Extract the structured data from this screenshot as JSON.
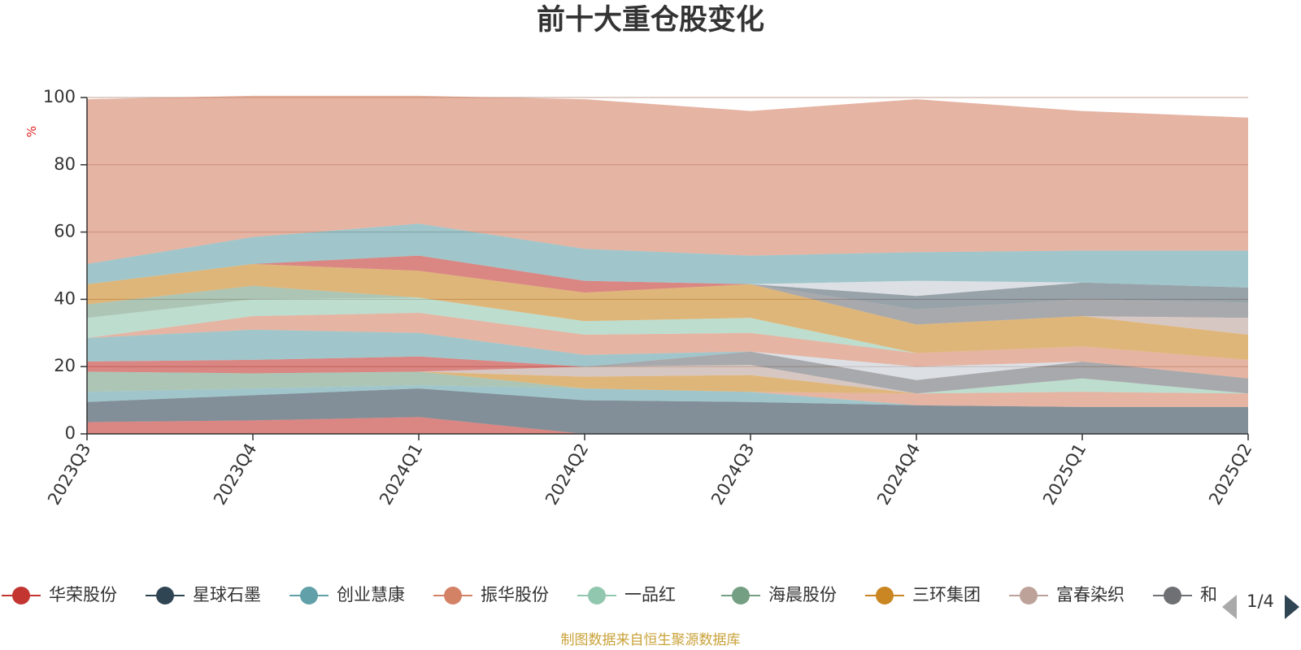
{
  "page": {
    "source_note": "制图数据来自恒生聚源数据库"
  },
  "legend": {
    "page_indicator": "1/4"
  },
  "chart_data": {
    "type": "area",
    "stacked": true,
    "title": "前十大重仓股变化",
    "ylabel": "%",
    "ylim": [
      0,
      100
    ],
    "yticks": [
      0,
      20,
      40,
      60,
      80,
      100
    ],
    "categories": [
      "2023Q3",
      "2023Q4",
      "2024Q1",
      "2024Q2",
      "2024Q3",
      "2024Q4",
      "2025Q1",
      "2025Q2"
    ],
    "grid": true,
    "legend_position": "bottom",
    "series": [
      {
        "name": "华荣股份",
        "color": "#c23531",
        "values": [
          3.5,
          4,
          5,
          0,
          0,
          0,
          0,
          0
        ]
      },
      {
        "name": "星球石墨",
        "color": "#2f4554",
        "values": [
          6,
          7.5,
          8.5,
          10,
          9.5,
          8.5,
          8,
          8
        ]
      },
      {
        "name": "创业慧康",
        "color": "#61a0a8",
        "values": [
          3,
          2,
          1,
          3.5,
          3,
          0,
          0,
          0
        ]
      },
      {
        "name": "振华股份",
        "color": "#d48265",
        "values": [
          0,
          0,
          0,
          0,
          0,
          3.5,
          4.5,
          4
        ]
      },
      {
        "name": "一品红",
        "color": "#91c7ae",
        "values": [
          0,
          0,
          0,
          0,
          0,
          0,
          4,
          0
        ]
      },
      {
        "name": "海晨股份",
        "color": "#749f83",
        "values": [
          6,
          4.5,
          4,
          0,
          0,
          0,
          0,
          0
        ]
      },
      {
        "name": "三环集团",
        "color": "#ca8622",
        "values": [
          0,
          0,
          0,
          3.5,
          5,
          0,
          0,
          0
        ]
      },
      {
        "name": "富春染织",
        "color": "#bda29a",
        "values": [
          0,
          0,
          0,
          3,
          3,
          0,
          0,
          0
        ]
      },
      {
        "name": "和",
        "color": "#6e7074",
        "values": [
          0,
          0,
          0,
          0,
          4,
          4,
          5,
          4.5
        ]
      },
      {
        "name": "",
        "color": "#c4ccd3",
        "values": [
          0,
          0,
          0,
          0,
          0,
          4,
          0,
          0
        ]
      },
      {
        "name": "",
        "color": "#c23531",
        "values": [
          3,
          4,
          4.5,
          0,
          0,
          0,
          0,
          0
        ]
      },
      {
        "name": "",
        "color": "#61a0a8",
        "values": [
          7,
          9,
          7,
          3.5,
          0,
          0,
          0,
          0
        ]
      },
      {
        "name": "",
        "color": "#d48265",
        "values": [
          0,
          4,
          6,
          6,
          5.5,
          4,
          4.5,
          5.5
        ]
      },
      {
        "name": "",
        "color": "#91c7ae",
        "values": [
          6,
          5,
          4.5,
          4,
          4.5,
          0,
          0,
          0
        ]
      },
      {
        "name": "",
        "color": "#749f83",
        "values": [
          4,
          4,
          0,
          0,
          0,
          0,
          0,
          0
        ]
      },
      {
        "name": "",
        "color": "#ca8622",
        "values": [
          6,
          6.5,
          8,
          8.5,
          10,
          8.5,
          9,
          7.5
        ]
      },
      {
        "name": "",
        "color": "#bda29a",
        "values": [
          0,
          0,
          0,
          0,
          0,
          0,
          0,
          5
        ]
      },
      {
        "name": "",
        "color": "#6e7074",
        "values": [
          0,
          0,
          0,
          0,
          0,
          4.5,
          5,
          4.5
        ]
      },
      {
        "name": "",
        "color": "#546570",
        "values": [
          0,
          0,
          0,
          0,
          0,
          4,
          5,
          4.5
        ]
      },
      {
        "name": "",
        "color": "#c4ccd3",
        "values": [
          0,
          0,
          0,
          0,
          0,
          4.5,
          0,
          0
        ]
      },
      {
        "name": "",
        "color": "#c23531",
        "values": [
          0,
          0,
          4.5,
          3.5,
          0,
          0,
          0,
          0
        ]
      },
      {
        "name": "",
        "color": "#61a0a8",
        "values": [
          6,
          8,
          9.5,
          9.5,
          8.5,
          8.5,
          9.5,
          11
        ]
      },
      {
        "name": "",
        "color": "#d48265",
        "values": [
          49,
          42,
          38,
          44.5,
          43,
          45.5,
          41.5,
          39.5
        ]
      }
    ]
  }
}
